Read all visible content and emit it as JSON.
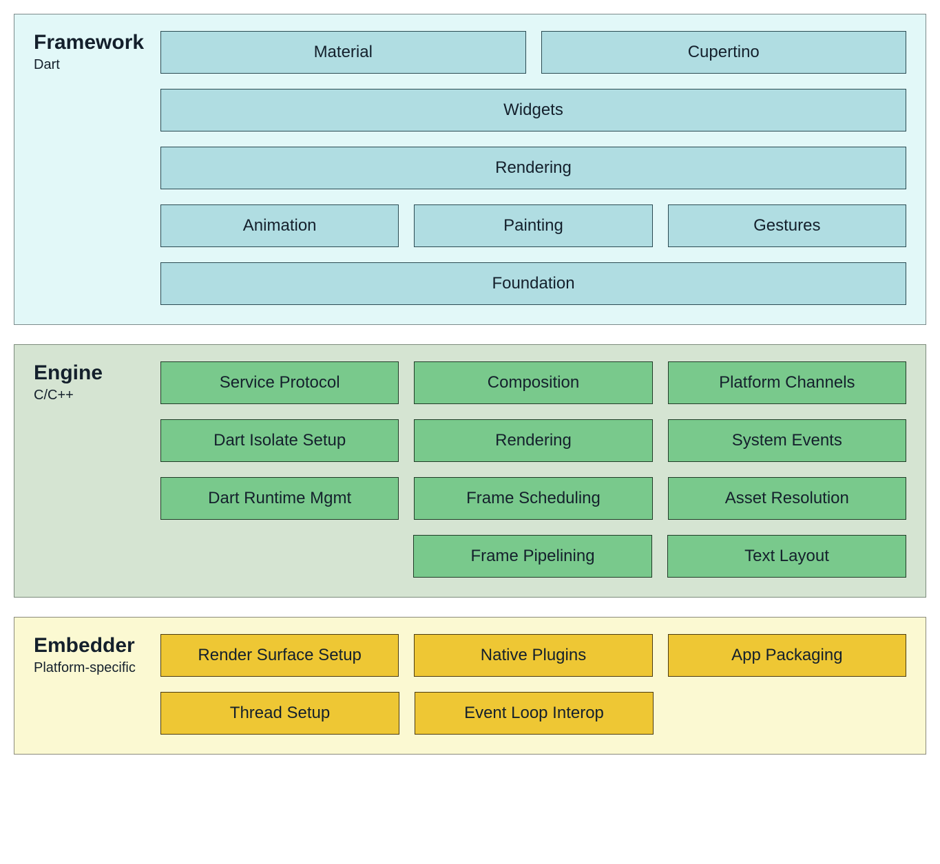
{
  "diagram": {
    "type": "layered-architecture",
    "box_font_size": 24,
    "title_font_size": 30,
    "subtitle_font_size": 20,
    "row_gap": 22,
    "box_gap": 22,
    "section_gap": 28,
    "text_color": "#14202c"
  },
  "sections": [
    {
      "id": "framework",
      "title": "Framework",
      "subtitle": "Dart",
      "bg_color": "#e2f8f8",
      "border_color": "#7a8a8a",
      "box_bg": "#b0dde2",
      "box_border": "#2a4a52",
      "rows": [
        {
          "cols": 2,
          "items": [
            "Material",
            "Cupertino"
          ]
        },
        {
          "cols": 1,
          "items": [
            "Widgets"
          ]
        },
        {
          "cols": 1,
          "items": [
            "Rendering"
          ]
        },
        {
          "cols": 3,
          "items": [
            "Animation",
            "Painting",
            "Gestures"
          ]
        },
        {
          "cols": 1,
          "items": [
            "Foundation"
          ]
        }
      ]
    },
    {
      "id": "engine",
      "title": "Engine",
      "subtitle": "C/C++",
      "bg_color": "#d5e4d2",
      "border_color": "#7a8a7a",
      "box_bg": "#79c98c",
      "box_border": "#1f3a26",
      "rows": [
        {
          "cols": 3,
          "items": [
            "Service Protocol",
            "Composition",
            "Platform Channels"
          ]
        },
        {
          "cols": 3,
          "items": [
            "Dart Isolate Setup",
            "Rendering",
            "System Events"
          ]
        },
        {
          "cols": 3,
          "items": [
            "Dart Runtime Mgmt",
            "Frame Scheduling",
            "Asset Resolution"
          ]
        },
        {
          "cols": 3,
          "items": [
            "",
            "Frame Pipelining",
            "Text Layout"
          ]
        }
      ]
    },
    {
      "id": "embedder",
      "title": "Embedder",
      "subtitle": "Platform-specific",
      "bg_color": "#fbf9d2",
      "border_color": "#8a8a7a",
      "box_bg": "#eec734",
      "box_border": "#4a3a10",
      "rows": [
        {
          "cols": 3,
          "items": [
            "Render Surface Setup",
            "Native Plugins",
            "App Packaging"
          ]
        },
        {
          "cols": 3,
          "items": [
            "Thread Setup",
            "Event Loop Interop",
            ""
          ]
        }
      ]
    }
  ]
}
